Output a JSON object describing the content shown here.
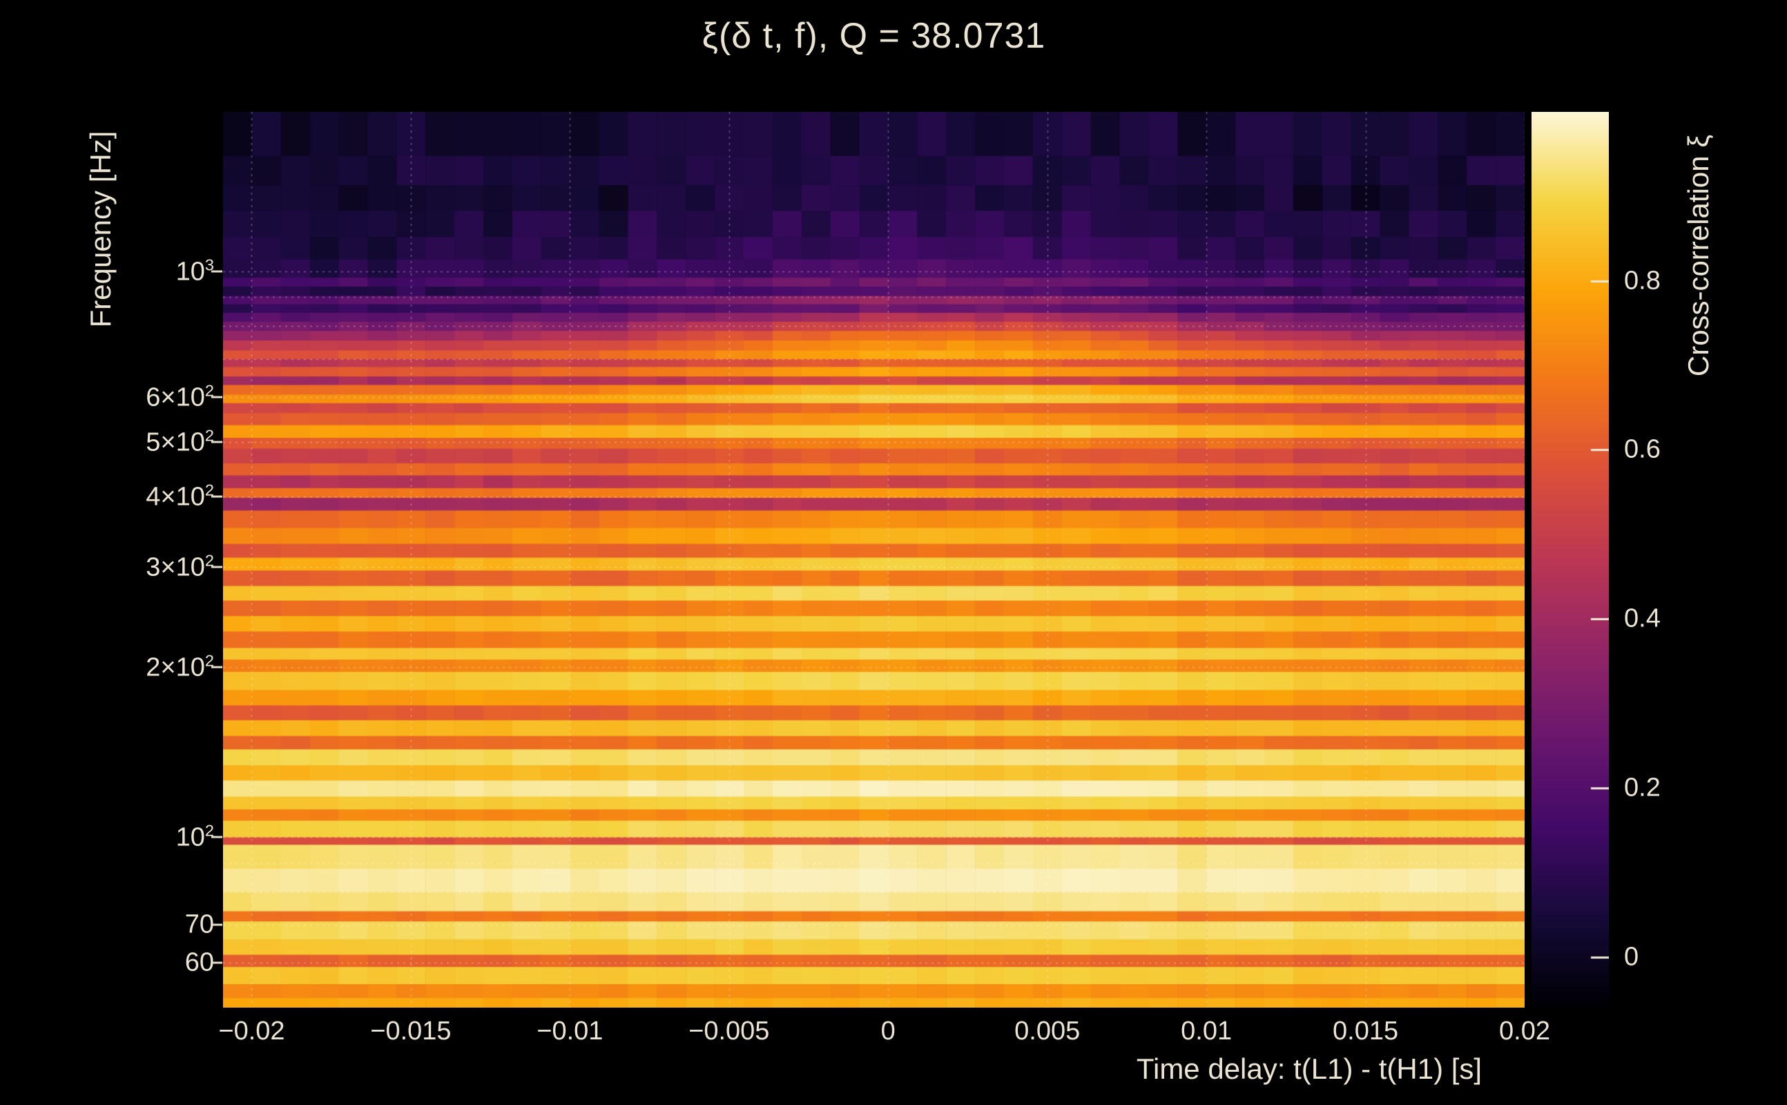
{
  "colors": {
    "background": "#000000",
    "text": "#ece4d2",
    "grid": "rgba(255,255,255,0.32)",
    "tick": "#e6ddc8"
  },
  "chart_data": {
    "type": "heatmap",
    "title": "ξ(δ t, f), Q = 38.0731",
    "xlabel": "Time delay: t(L1) - t(H1) [s]",
    "ylabel": "Frequency [Hz]",
    "colorbar_label": "Cross-correlation ξ",
    "x_axis_scale": "linear",
    "y_axis_scale": "log",
    "xlim": [
      -0.0209,
      0.02
    ],
    "freq_range": [
      50,
      1914
    ],
    "value_range": [
      -0.06,
      1.0
    ],
    "grid": true,
    "n_cols": 45,
    "bump_center": 0.0015,
    "bump_width": 0.0095,
    "x_ticks": [
      {
        "v": -0.02,
        "label": "−0.02"
      },
      {
        "v": -0.015,
        "label": "−0.015"
      },
      {
        "v": -0.01,
        "label": "−0.01"
      },
      {
        "v": -0.005,
        "label": "−0.005"
      },
      {
        "v": 0,
        "label": "0"
      },
      {
        "v": 0.005,
        "label": "0.005"
      },
      {
        "v": 0.01,
        "label": "0.01"
      },
      {
        "v": 0.015,
        "label": "0.015"
      },
      {
        "v": 0.02,
        "label": "0.02"
      }
    ],
    "y_ticks": [
      {
        "f": 1000,
        "mant": "10",
        "exp": "3"
      },
      {
        "f": 600,
        "mant": "6×10",
        "exp": "2"
      },
      {
        "f": 500,
        "mant": "5×10",
        "exp": "2"
      },
      {
        "f": 400,
        "mant": "4×10",
        "exp": "2"
      },
      {
        "f": 300,
        "mant": "3×10",
        "exp": "2"
      },
      {
        "f": 200,
        "mant": "2×10",
        "exp": "2"
      },
      {
        "f": 100,
        "mant": "10",
        "exp": "2"
      },
      {
        "f": 70,
        "mant": "70",
        "exp": ""
      },
      {
        "f": 60,
        "mant": "60",
        "exp": ""
      }
    ],
    "colorbar_ticks": [
      {
        "v": 0.8,
        "label": "0.8"
      },
      {
        "v": 0.6,
        "label": "0.6"
      },
      {
        "v": 0.4,
        "label": "0.4"
      },
      {
        "v": 0.2,
        "label": "0.2"
      },
      {
        "v": 0,
        "label": "0"
      }
    ],
    "grid_freqs": [
      1000,
      900,
      800,
      700,
      600,
      500,
      400,
      300,
      200,
      100,
      90,
      80,
      70,
      60
    ],
    "colormap_stops": [
      [
        0.0,
        "#000004"
      ],
      [
        0.1,
        "#160b39"
      ],
      [
        0.2,
        "#420a68"
      ],
      [
        0.3,
        "#6a176e"
      ],
      [
        0.4,
        "#932667"
      ],
      [
        0.5,
        "#bc3754"
      ],
      [
        0.6,
        "#dd513a"
      ],
      [
        0.7,
        "#f37819"
      ],
      [
        0.8,
        "#fca50a"
      ],
      [
        0.9,
        "#f5d442"
      ],
      [
        1.0,
        "#fdf7d8"
      ]
    ],
    "bands_format": [
      "freq_top_hz",
      "freq_bottom_hz",
      "base_xi",
      "center_bump_amplitude"
    ],
    "bands": [
      [
        1914,
        1600,
        0.04,
        0.03
      ],
      [
        1600,
        1420,
        0.06,
        0.04
      ],
      [
        1420,
        1280,
        0.04,
        0.05
      ],
      [
        1280,
        1150,
        0.07,
        0.06
      ],
      [
        1150,
        1050,
        0.09,
        0.08
      ],
      [
        1050,
        975,
        0.12,
        0.1
      ],
      [
        975,
        940,
        0.2,
        0.12
      ],
      [
        940,
        905,
        0.13,
        0.12
      ],
      [
        905,
        875,
        0.26,
        0.16
      ],
      [
        875,
        845,
        0.17,
        0.16
      ],
      [
        845,
        815,
        0.3,
        0.22
      ],
      [
        815,
        785,
        0.38,
        0.28
      ],
      [
        785,
        755,
        0.48,
        0.3
      ],
      [
        755,
        725,
        0.58,
        0.26
      ],
      [
        725,
        700,
        0.66,
        0.22
      ],
      [
        700,
        678,
        0.52,
        0.16
      ],
      [
        678,
        652,
        0.66,
        0.2
      ],
      [
        652,
        630,
        0.46,
        0.14
      ],
      [
        630,
        606,
        0.72,
        0.2
      ],
      [
        606,
        585,
        0.8,
        0.16
      ],
      [
        585,
        562,
        0.58,
        0.12
      ],
      [
        562,
        535,
        0.66,
        0.14
      ],
      [
        535,
        508,
        0.82,
        0.12
      ],
      [
        508,
        486,
        0.64,
        0.1
      ],
      [
        486,
        458,
        0.55,
        0.1
      ],
      [
        458,
        436,
        0.66,
        0.1
      ],
      [
        436,
        414,
        0.48,
        0.08
      ],
      [
        414,
        398,
        0.7,
        0.1
      ],
      [
        398,
        378,
        0.42,
        0.08
      ],
      [
        378,
        352,
        0.68,
        0.1
      ],
      [
        352,
        330,
        0.76,
        0.1
      ],
      [
        330,
        312,
        0.62,
        0.08
      ],
      [
        312,
        296,
        0.84,
        0.08
      ],
      [
        296,
        278,
        0.64,
        0.08
      ],
      [
        278,
        262,
        0.88,
        0.06
      ],
      [
        262,
        246,
        0.68,
        0.06
      ],
      [
        246,
        231,
        0.84,
        0.06
      ],
      [
        231,
        216,
        0.7,
        0.06
      ],
      [
        216,
        206,
        0.88,
        0.05
      ],
      [
        206,
        196,
        0.72,
        0.05
      ],
      [
        196,
        182,
        0.88,
        0.05
      ],
      [
        182,
        171,
        0.78,
        0.05
      ],
      [
        171,
        161,
        0.62,
        0.05
      ],
      [
        161,
        151,
        0.84,
        0.05
      ],
      [
        151,
        143,
        0.66,
        0.05
      ],
      [
        143,
        134,
        0.92,
        0.04
      ],
      [
        134,
        126,
        0.84,
        0.04
      ],
      [
        126,
        118,
        0.96,
        0.03
      ],
      [
        118,
        112,
        0.88,
        0.03
      ],
      [
        112,
        107,
        0.72,
        0.03
      ],
      [
        107,
        100,
        0.9,
        0.03
      ],
      [
        100,
        97,
        0.58,
        0.03
      ],
      [
        97,
        88,
        0.94,
        0.03
      ],
      [
        88,
        80,
        0.97,
        0.02
      ],
      [
        80,
        74,
        0.94,
        0.02
      ],
      [
        74,
        71,
        0.68,
        0.02
      ],
      [
        71,
        66,
        0.92,
        0.02
      ],
      [
        66,
        62,
        0.87,
        0.02
      ],
      [
        62,
        59,
        0.63,
        0.02
      ],
      [
        59,
        55,
        0.87,
        0.02
      ],
      [
        55,
        52,
        0.73,
        0.02
      ],
      [
        52,
        50,
        0.8,
        0.02
      ]
    ]
  }
}
